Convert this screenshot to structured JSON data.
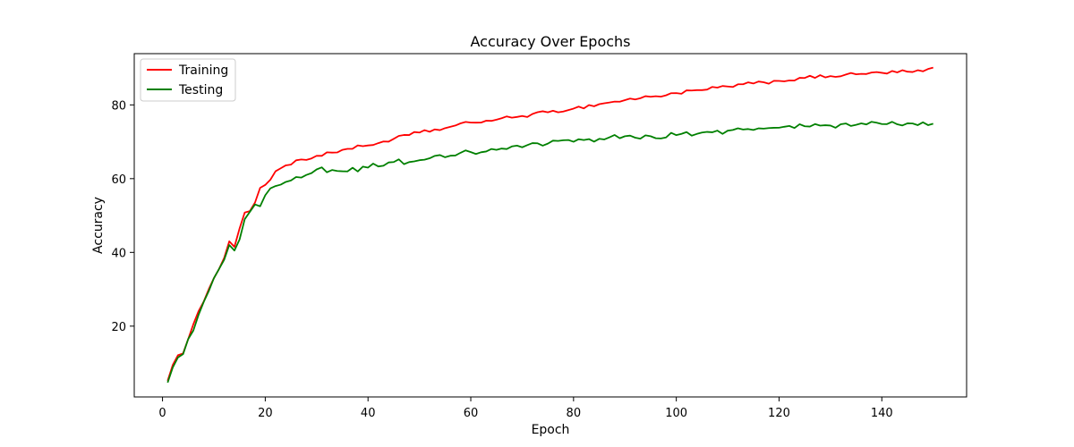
{
  "chart_data": {
    "type": "line",
    "title": "Accuracy Over Epochs",
    "xlabel": "Epoch",
    "ylabel": "Accuracy",
    "xlim": [
      -5.5,
      156.5
    ],
    "ylim": [
      0.8,
      93.9
    ],
    "xticks": [
      0,
      20,
      40,
      60,
      80,
      100,
      120,
      140
    ],
    "yticks": [
      20,
      40,
      60,
      80
    ],
    "grid": false,
    "legend_position": "top-left",
    "series": [
      {
        "name": "Training",
        "color": "#ff0000",
        "keypoints": [
          [
            1,
            5.2
          ],
          [
            2,
            9.5
          ],
          [
            3,
            12.1
          ],
          [
            4,
            12.6
          ],
          [
            5,
            16.5
          ],
          [
            6,
            20.5
          ],
          [
            7,
            24
          ],
          [
            8,
            26.6
          ],
          [
            9,
            30
          ],
          [
            10,
            33
          ],
          [
            11,
            35.5
          ],
          [
            12,
            38.5
          ],
          [
            13,
            43
          ],
          [
            14,
            41.5
          ],
          [
            15,
            46.5
          ],
          [
            16,
            50.8
          ],
          [
            17,
            51.2
          ],
          [
            18,
            53.5
          ],
          [
            19,
            57.5
          ],
          [
            20,
            58.3
          ],
          [
            22,
            62
          ],
          [
            25,
            63.8
          ],
          [
            27,
            65.2
          ],
          [
            30,
            66.2
          ],
          [
            35,
            67.8
          ],
          [
            40,
            69
          ],
          [
            45,
            70.8
          ],
          [
            50,
            72.5
          ],
          [
            55,
            73.7
          ],
          [
            60,
            75.2
          ],
          [
            65,
            76
          ],
          [
            70,
            77
          ],
          [
            75,
            78
          ],
          [
            80,
            79
          ],
          [
            85,
            80.2
          ],
          [
            90,
            81.3
          ],
          [
            95,
            82.2
          ],
          [
            100,
            83.2
          ],
          [
            105,
            84
          ],
          [
            110,
            85
          ],
          [
            115,
            85.8
          ],
          [
            120,
            86.5
          ],
          [
            125,
            87.3
          ],
          [
            130,
            87.8
          ],
          [
            135,
            88.3
          ],
          [
            140,
            88.7
          ],
          [
            145,
            89
          ],
          [
            148,
            89.1
          ],
          [
            150,
            90.1
          ]
        ],
        "noise": 0.5
      },
      {
        "name": "Testing",
        "color": "#008000",
        "keypoints": [
          [
            1,
            4.7
          ],
          [
            2,
            8.8
          ],
          [
            3,
            11.5
          ],
          [
            4,
            12.4
          ],
          [
            5,
            16.5
          ],
          [
            6,
            18.8
          ],
          [
            7,
            23
          ],
          [
            8,
            26.5
          ],
          [
            9,
            29.5
          ],
          [
            10,
            33
          ],
          [
            11,
            35.5
          ],
          [
            12,
            38
          ],
          [
            13,
            42
          ],
          [
            14,
            40.5
          ],
          [
            15,
            43.5
          ],
          [
            16,
            49
          ],
          [
            17,
            51
          ],
          [
            18,
            53
          ],
          [
            19,
            52.5
          ],
          [
            20,
            55.5
          ],
          [
            22,
            58
          ],
          [
            25,
            59.5
          ],
          [
            28,
            61
          ],
          [
            30,
            62.5
          ],
          [
            35,
            62
          ],
          [
            40,
            63
          ],
          [
            45,
            64.5
          ],
          [
            50,
            65
          ],
          [
            55,
            65.8
          ],
          [
            60,
            67.2
          ],
          [
            65,
            67.8
          ],
          [
            70,
            68.5
          ],
          [
            75,
            69.5
          ],
          [
            80,
            70
          ],
          [
            85,
            70.8
          ],
          [
            90,
            71.5
          ],
          [
            95,
            71.5
          ],
          [
            100,
            71.8
          ],
          [
            105,
            72.5
          ],
          [
            110,
            73
          ],
          [
            115,
            73.2
          ],
          [
            120,
            73.8
          ],
          [
            125,
            74.2
          ],
          [
            130,
            74.4
          ],
          [
            135,
            74.6
          ],
          [
            140,
            74.8
          ],
          [
            145,
            75
          ],
          [
            150,
            74.9
          ]
        ],
        "noise": 0.8
      }
    ]
  }
}
